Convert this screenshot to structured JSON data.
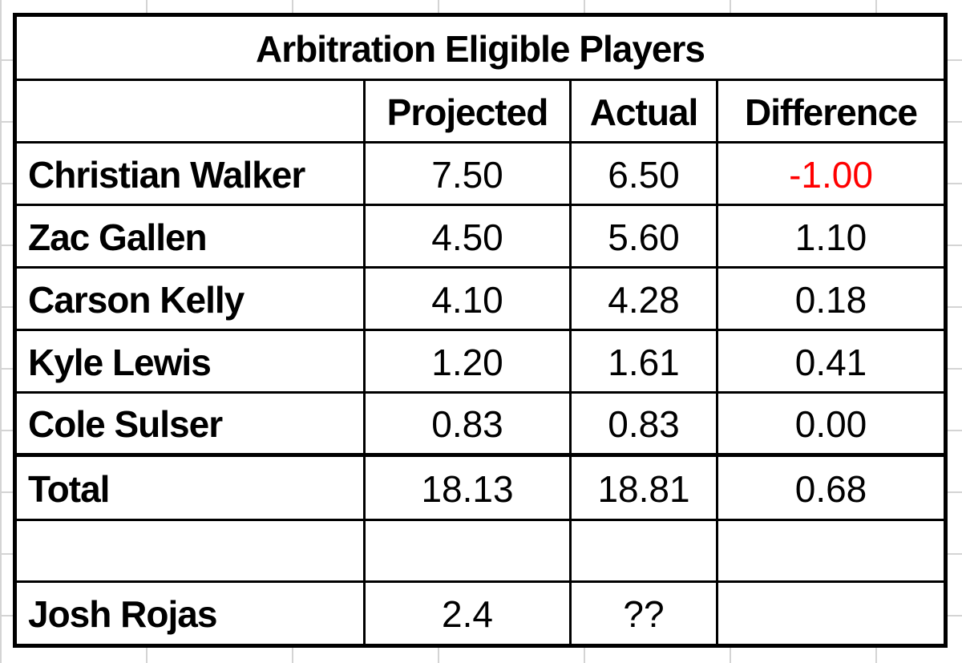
{
  "table": {
    "title": "Arbitration Eligible Players",
    "headers": [
      "",
      "Projected",
      "Actual",
      "Difference"
    ],
    "players": [
      {
        "name": "Christian Walker",
        "projected": "7.50",
        "actual": "6.50",
        "difference": "-1.00",
        "negative": true
      },
      {
        "name": "Zac Gallen",
        "projected": "4.50",
        "actual": "5.60",
        "difference": "1.10",
        "negative": false
      },
      {
        "name": "Carson Kelly",
        "projected": "4.10",
        "actual": "4.28",
        "difference": "0.18",
        "negative": false
      },
      {
        "name": "Kyle Lewis",
        "projected": "1.20",
        "actual": "1.61",
        "difference": "0.41",
        "negative": false
      },
      {
        "name": "Cole Sulser",
        "projected": "0.83",
        "actual": "0.83",
        "difference": "0.00",
        "negative": false
      }
    ],
    "total": {
      "name": "Total",
      "projected": "18.13",
      "actual": "18.81",
      "difference": "0.68"
    },
    "blank": {
      "name": "",
      "projected": "",
      "actual": "",
      "difference": ""
    },
    "extra": {
      "name": "Josh Rojas",
      "projected": "2.4",
      "actual": "??",
      "difference": ""
    }
  },
  "colors": {
    "negative": "#ff0000",
    "border": "#000000",
    "gridline": "#d4d4d4"
  }
}
